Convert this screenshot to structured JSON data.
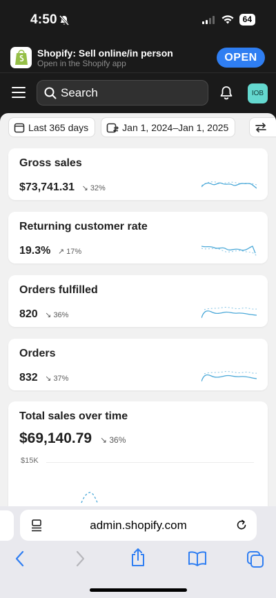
{
  "status_bar": {
    "time": "4:50",
    "battery": "64"
  },
  "app_banner": {
    "title": "Shopify: Sell online/in person",
    "subtitle": "Open in the Shopify app",
    "open_label": "OPEN"
  },
  "top_nav": {
    "search_placeholder": "Search",
    "avatar_initials": "IOB"
  },
  "filters": {
    "period": "Last 365 days",
    "range": "Jan 1, 2024–Jan 1, 2025"
  },
  "metrics": [
    {
      "title": "Gross sales",
      "value": "$73,741.31",
      "change": "32%",
      "direction": "down"
    },
    {
      "title": "Returning customer rate",
      "value": "19.3%",
      "change": "17%",
      "direction": "up"
    },
    {
      "title": "Orders fulfilled",
      "value": "820",
      "change": "36%",
      "direction": "down"
    },
    {
      "title": "Orders",
      "value": "832",
      "change": "37%",
      "direction": "down"
    }
  ],
  "total_sales": {
    "title": "Total sales over time",
    "value": "$69,140.79",
    "change": "36%",
    "direction": "down",
    "ytick": "$15K"
  },
  "browser": {
    "url": "admin.shopify.com"
  },
  "colors": {
    "accent": "#2f7ef2",
    "sparkline": "#4aa8d8",
    "avatar": "#64d8cf"
  }
}
